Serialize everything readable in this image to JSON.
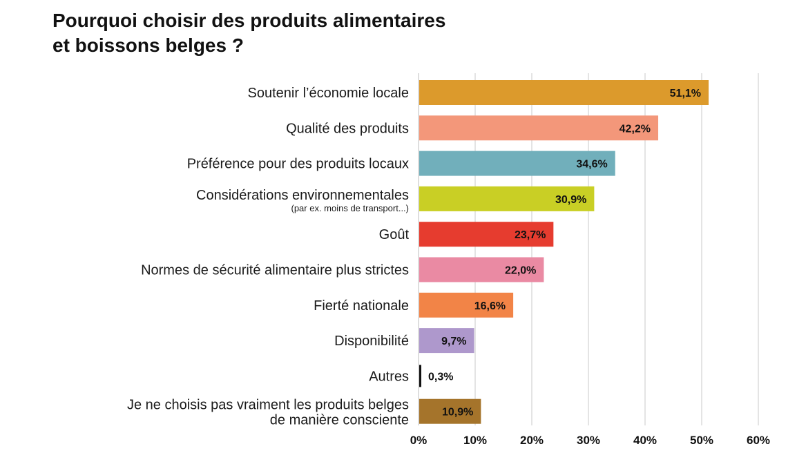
{
  "chart_data": {
    "type": "bar",
    "orientation": "horizontal",
    "title_lines": [
      "Pourquoi choisir des produits alimentaires",
      "et boissons belges ?"
    ],
    "categories": [
      {
        "label": "Soutenir l’économie locale",
        "sublabel": "",
        "value": 51.1,
        "value_label": "51,1%",
        "color": "#dc9a2c"
      },
      {
        "label": "Qualité des produits",
        "sublabel": "",
        "value": 42.2,
        "value_label": "42,2%",
        "color": "#f3977a"
      },
      {
        "label": "Préférence pour des produits locaux",
        "sublabel": "",
        "value": 34.6,
        "value_label": "34,6%",
        "color": "#71afbb"
      },
      {
        "label": "Considérations environnementales",
        "sublabel": "(par ex. moins de transport...)",
        "value": 30.9,
        "value_label": "30,9%",
        "color": "#c9cf25"
      },
      {
        "label": "Goût",
        "sublabel": "",
        "value": 23.7,
        "value_label": "23,7%",
        "color": "#e63c2f"
      },
      {
        "label": "Normes de sécurité alimentaire plus strictes",
        "sublabel": "",
        "value": 22.0,
        "value_label": "22,0%",
        "color": "#ea8aa3"
      },
      {
        "label": "Fierté nationale",
        "sublabel": "",
        "value": 16.6,
        "value_label": "16,6%",
        "color": "#f28447"
      },
      {
        "label": "Disponibilité",
        "sublabel": "",
        "value": 9.7,
        "value_label": "9,7%",
        "color": "#ae98cc"
      },
      {
        "label": "Autres",
        "sublabel": "",
        "value": 0.3,
        "value_label": "0,3%",
        "color": "#111111"
      },
      {
        "label": "Je ne choisis pas vraiment les produits belges",
        "sublabel": "de manière consciente",
        "value": 10.9,
        "value_label": "10,9%",
        "color": "#a5742b"
      }
    ],
    "xlim": [
      0,
      60
    ],
    "ticks": [
      0,
      10,
      20,
      30,
      40,
      50,
      60
    ],
    "tick_labels": [
      "0%",
      "10%",
      "20%",
      "30%",
      "40%",
      "50%",
      "60%"
    ],
    "grid": true,
    "xlabel": "",
    "ylabel": ""
  }
}
